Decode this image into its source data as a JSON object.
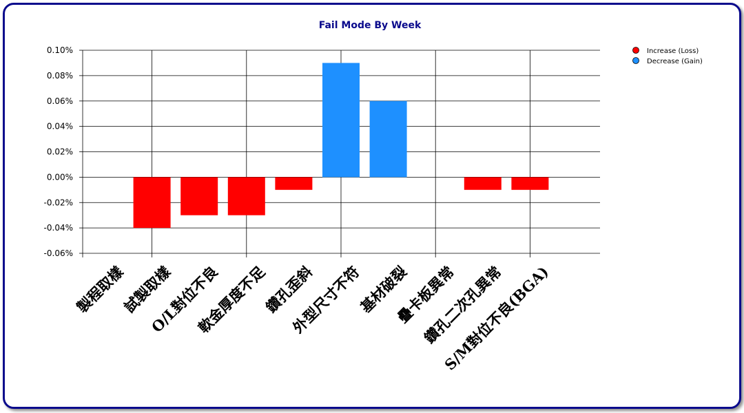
{
  "colors": {
    "loss": "#ff0000",
    "gain": "#1e90ff",
    "frame": "#0a0a8c",
    "title": "#0a0a8c"
  },
  "chart_data": {
    "type": "bar",
    "title": "Fail Mode By Week",
    "xlabel": "",
    "ylabel": "",
    "ylim": [
      -0.06,
      0.1
    ],
    "yticks": [
      0.1,
      0.08,
      0.06,
      0.04,
      0.02,
      0.0,
      -0.02,
      -0.04,
      -0.06
    ],
    "ytick_labels": [
      "0.10%",
      "0.08%",
      "0.06%",
      "0.04%",
      "0.02%",
      "0.00%",
      "-0.02%",
      "-0.04%",
      "-0.06%"
    ],
    "categories": [
      "製程取樣",
      "試製取樣",
      "O/L對位不良",
      "軟金厚度不足",
      "鑽孔歪斜",
      "外型尺寸不符",
      "基材破裂",
      "疊卡板異常",
      "鑽孔二次孔異常",
      "S/M對位不良(BGA)"
    ],
    "values": [
      0,
      -0.04,
      -0.03,
      -0.03,
      -0.01,
      0.09,
      0.06,
      0,
      -0.01,
      -0.01
    ],
    "grid": true,
    "legend_position": "top-right",
    "series": [
      {
        "name": "Increase (Loss)",
        "color": "#ff0000"
      },
      {
        "name": "Decrease (Gain)",
        "color": "#1e90ff"
      }
    ]
  }
}
